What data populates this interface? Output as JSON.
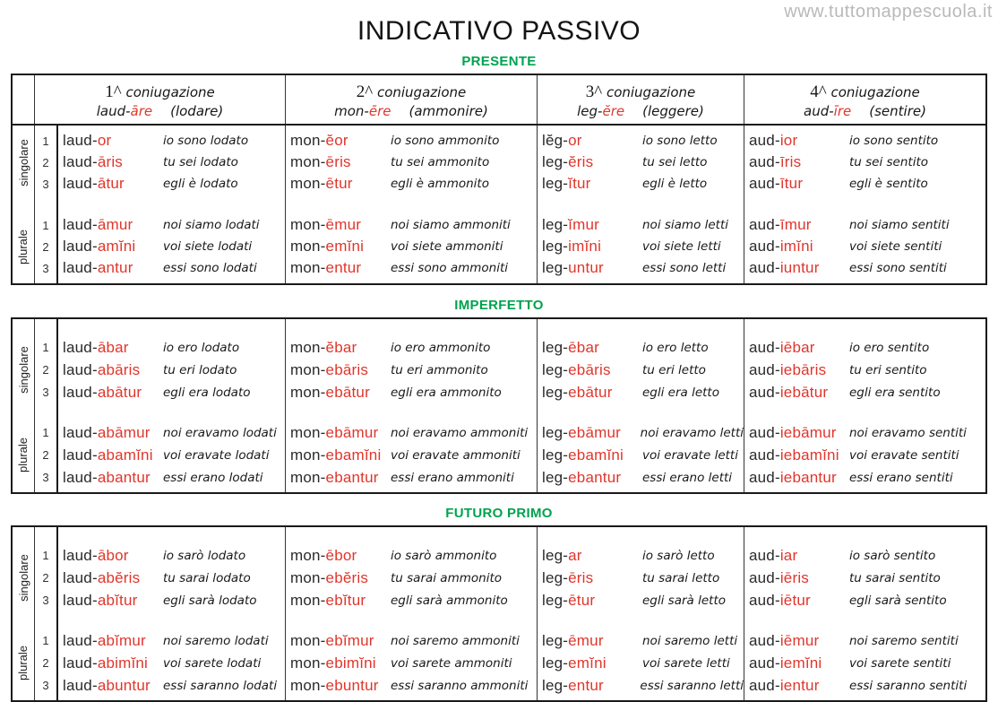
{
  "watermark": "www.tuttomappescuola.it",
  "title": "INDICATIVO PASSIVO",
  "colors": {
    "ending_red": "#e0362c",
    "header_green": "#00a24f",
    "watermark_gray": "#b9b9b9"
  },
  "side_labels": {
    "singular_label": "singolare",
    "plural_label": "plurale"
  },
  "row_numbers": [
    "1",
    "2",
    "3"
  ],
  "conjugation_headers": [
    {
      "num": "1^",
      "word": "coniugazione",
      "stem": "laud-",
      "ending": "āre",
      "translation": "(lodare)"
    },
    {
      "num": "2^",
      "word": "coniugazione",
      "stem": "mon-",
      "ending": "ēre",
      "translation": "(ammonire)"
    },
    {
      "num": "3^",
      "word": "coniugazione",
      "stem": "leg-",
      "ending": "ĕre",
      "translation": "(leggere)"
    },
    {
      "num": "4^",
      "word": "coniugazione",
      "stem": "aud-",
      "ending": "īre",
      "translation": "(sentire)"
    }
  ],
  "sections": [
    {
      "label": "PRESENTE",
      "conjugations": [
        {
          "singular": [
            {
              "stem": "laud-",
              "ending": "or",
              "it": "io sono lodato"
            },
            {
              "stem": "laud-",
              "ending": "āris",
              "it": "tu sei lodato"
            },
            {
              "stem": "laud-",
              "ending": "ātur",
              "it": "egli è lodato"
            }
          ],
          "plural": [
            {
              "stem": "laud-",
              "ending": "āmur",
              "it": "noi siamo lodati"
            },
            {
              "stem": "laud-",
              "ending": "amĭni",
              "it": "voi siete lodati"
            },
            {
              "stem": "laud-",
              "ending": "antur",
              "it": "essi sono lodati"
            }
          ]
        },
        {
          "singular": [
            {
              "stem": "mon-",
              "ending": "ĕor",
              "it": "io sono ammonito"
            },
            {
              "stem": "mon-",
              "ending": "ēris",
              "it": "tu sei ammonito"
            },
            {
              "stem": "mon-",
              "ending": "ētur",
              "it": "egli è ammonito"
            }
          ],
          "plural": [
            {
              "stem": "mon-",
              "ending": "ēmur",
              "it": "noi siamo ammoniti"
            },
            {
              "stem": "mon-",
              "ending": "emĭni",
              "it": "voi siete ammoniti"
            },
            {
              "stem": "mon-",
              "ending": "entur",
              "it": "essi sono ammoniti"
            }
          ]
        },
        {
          "singular": [
            {
              "stem": "lĕg-",
              "ending": "or",
              "it": "io sono letto"
            },
            {
              "stem": "leg-",
              "ending": "ĕris",
              "it": "tu sei letto"
            },
            {
              "stem": "leg-",
              "ending": "ĭtur",
              "it": "egli è letto"
            }
          ],
          "plural": [
            {
              "stem": "leg-",
              "ending": "ĭmur",
              "it": "noi siamo letti"
            },
            {
              "stem": "leg-",
              "ending": "imĭni",
              "it": "voi siete letti"
            },
            {
              "stem": "leg-",
              "ending": "untur",
              "it": "essi sono letti"
            }
          ]
        },
        {
          "singular": [
            {
              "stem": "aud-",
              "ending": "ior",
              "it": "io sono sentito"
            },
            {
              "stem": "aud-",
              "ending": "īris",
              "it": "tu sei sentito"
            },
            {
              "stem": "aud-",
              "ending": "ītur",
              "it": "egli è sentito"
            }
          ],
          "plural": [
            {
              "stem": "aud-",
              "ending": "īmur",
              "it": "noi siamo sentiti"
            },
            {
              "stem": "aud-",
              "ending": "imĭni",
              "it": "voi siete sentiti"
            },
            {
              "stem": "aud-",
              "ending": "iuntur",
              "it": "essi sono sentiti"
            }
          ]
        }
      ]
    },
    {
      "label": "IMPERFETTO",
      "conjugations": [
        {
          "singular": [
            {
              "stem": "laud-",
              "ending": "ābar",
              "it": "io ero lodato"
            },
            {
              "stem": "laud-",
              "ending": "abāris",
              "it": "tu eri lodato"
            },
            {
              "stem": "laud-",
              "ending": "abātur",
              "it": "egli era lodato"
            }
          ],
          "plural": [
            {
              "stem": "laud-",
              "ending": "abāmur",
              "it": "noi eravamo lodati"
            },
            {
              "stem": "laud-",
              "ending": "abamĭni",
              "it": "voi eravate lodati"
            },
            {
              "stem": "laud-",
              "ending": "abantur",
              "it": "essi erano lodati"
            }
          ]
        },
        {
          "singular": [
            {
              "stem": "mon-",
              "ending": "ĕbar",
              "it": "io ero ammonito"
            },
            {
              "stem": "mon-",
              "ending": "ebāris",
              "it": "tu eri ammonito"
            },
            {
              "stem": "mon-",
              "ending": "ebātur",
              "it": "egli era ammonito"
            }
          ],
          "plural": [
            {
              "stem": "mon-",
              "ending": "ebāmur",
              "it": "noi eravamo ammoniti"
            },
            {
              "stem": "mon-",
              "ending": "ebamĭni",
              "it": "voi eravate ammoniti"
            },
            {
              "stem": "mon-",
              "ending": "ebantur",
              "it": "essi erano ammoniti"
            }
          ]
        },
        {
          "singular": [
            {
              "stem": "leg-",
              "ending": "ēbar",
              "it": "io ero letto"
            },
            {
              "stem": "leg-",
              "ending": "ebāris",
              "it": "tu eri letto"
            },
            {
              "stem": "leg-",
              "ending": "ebātur",
              "it": "egli era letto"
            }
          ],
          "plural": [
            {
              "stem": "leg-",
              "ending": "ebāmur",
              "it": "noi eravamo letti"
            },
            {
              "stem": "leg-",
              "ending": "ebamĭni",
              "it": "voi eravate letti"
            },
            {
              "stem": "leg-",
              "ending": "ebantur",
              "it": "essi erano letti"
            }
          ]
        },
        {
          "singular": [
            {
              "stem": "aud-",
              "ending": "iēbar",
              "it": "io ero sentito"
            },
            {
              "stem": "aud-",
              "ending": "iebāris",
              "it": "tu eri sentito"
            },
            {
              "stem": "aud-",
              "ending": "iebātur",
              "it": "egli era sentito"
            }
          ],
          "plural": [
            {
              "stem": "aud-",
              "ending": "iebāmur",
              "it": "noi eravamo sentiti"
            },
            {
              "stem": "aud-",
              "ending": "iebamĭni",
              "it": "voi eravate sentiti"
            },
            {
              "stem": "aud-",
              "ending": "iebantur",
              "it": "essi erano sentiti"
            }
          ]
        }
      ]
    },
    {
      "label": "FUTURO PRIMO",
      "conjugations": [
        {
          "singular": [
            {
              "stem": "laud-",
              "ending": "ābor",
              "it": "io sarò lodato"
            },
            {
              "stem": "laud-",
              "ending": "abĕris",
              "it": "tu sarai lodato"
            },
            {
              "stem": "laud-",
              "ending": "abĭtur",
              "it": "egli sarà lodato"
            }
          ],
          "plural": [
            {
              "stem": "laud-",
              "ending": "abĭmur",
              "it": "noi saremo lodati"
            },
            {
              "stem": "laud-",
              "ending": "abimĭni",
              "it": "voi sarete lodati"
            },
            {
              "stem": "laud-",
              "ending": "abuntur",
              "it": "essi saranno lodati"
            }
          ]
        },
        {
          "singular": [
            {
              "stem": "mon-",
              "ending": "ēbor",
              "it": "io sarò ammonito"
            },
            {
              "stem": "mon-",
              "ending": "ebĕris",
              "it": "tu sarai ammonito"
            },
            {
              "stem": "mon-",
              "ending": "ebĭtur",
              "it": "egli sarà ammonito"
            }
          ],
          "plural": [
            {
              "stem": "mon-",
              "ending": "ebĭmur",
              "it": "noi saremo ammoniti"
            },
            {
              "stem": "mon-",
              "ending": "ebimĭni",
              "it": "voi sarete ammoniti"
            },
            {
              "stem": "mon-",
              "ending": "ebuntur",
              "it": "essi saranno ammoniti"
            }
          ]
        },
        {
          "singular": [
            {
              "stem": "leg-",
              "ending": "ar",
              "it": "io sarò letto"
            },
            {
              "stem": "leg-",
              "ending": "ēris",
              "it": "tu sarai letto"
            },
            {
              "stem": "leg-",
              "ending": "ētur",
              "it": "egli sarà letto"
            }
          ],
          "plural": [
            {
              "stem": "leg-",
              "ending": "ēmur",
              "it": "noi saremo letti"
            },
            {
              "stem": "leg-",
              "ending": "emĭni",
              "it": "voi sarete letti"
            },
            {
              "stem": "leg-",
              "ending": "entur",
              "it": "essi saranno letti"
            }
          ]
        },
        {
          "singular": [
            {
              "stem": "aud-",
              "ending": "iar",
              "it": "io sarò sentito"
            },
            {
              "stem": "aud-",
              "ending": "iēris",
              "it": "tu sarai sentito"
            },
            {
              "stem": "aud-",
              "ending": "iētur",
              "it": "egli sarà sentito"
            }
          ],
          "plural": [
            {
              "stem": "aud-",
              "ending": "iēmur",
              "it": "noi saremo sentiti"
            },
            {
              "stem": "aud-",
              "ending": "iemĭni",
              "it": "voi sarete sentiti"
            },
            {
              "stem": "aud-",
              "ending": "ientur",
              "it": "essi saranno sentiti"
            }
          ]
        }
      ]
    }
  ]
}
